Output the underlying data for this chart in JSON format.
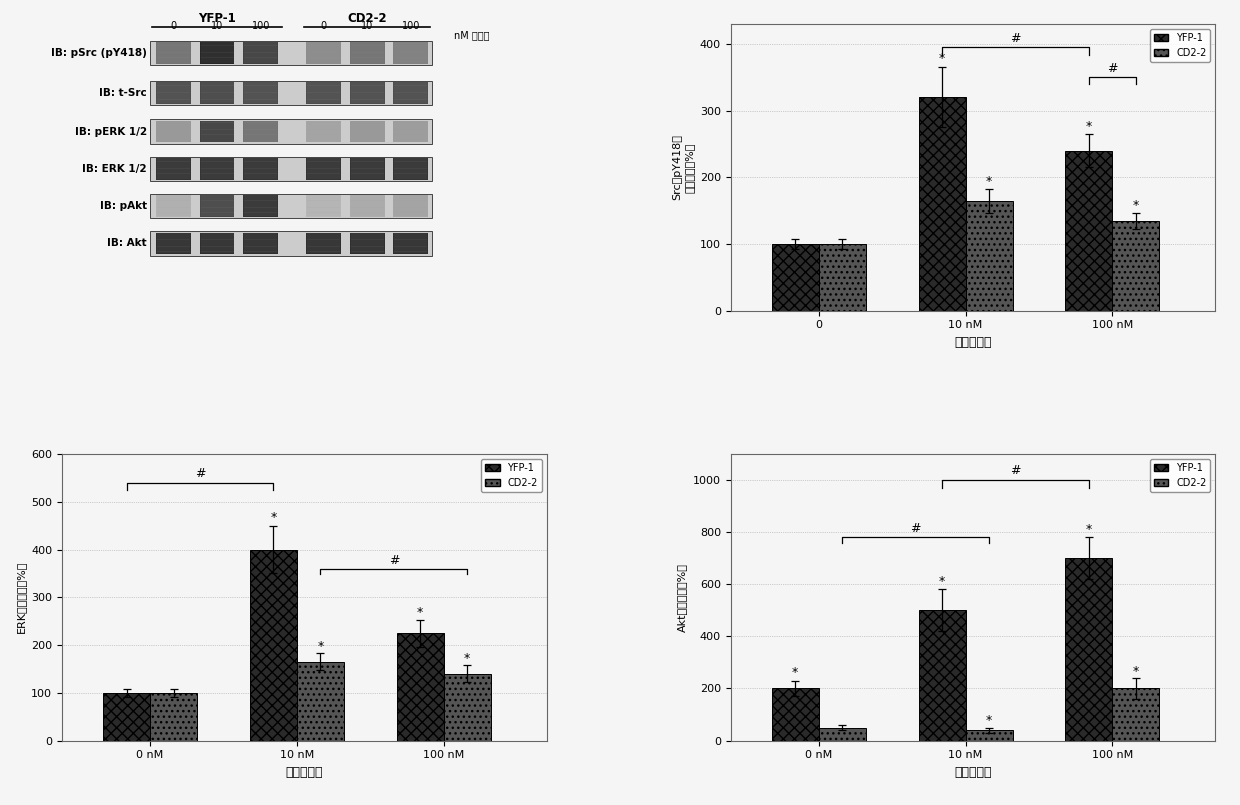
{
  "western_blot": {
    "labels": [
      "IB: pSrc (pY418)",
      "IB: t-Src",
      "IB: pERK 1/2",
      "IB: ERK 1/2",
      "IB: pAkt",
      "IB: Akt"
    ],
    "col_groups": [
      "YFP-1",
      "CD2-2"
    ],
    "col_doses": [
      "0",
      "10",
      "100",
      "0",
      "10",
      "100"
    ],
    "dose_label": "nM 乌本苷"
  },
  "src_chart": {
    "ylabel": "Src（pY418）\n活化（对照%）",
    "xlabel": "乌本苷浓度",
    "xtick_labels": [
      "0",
      "10 nM",
      "100 nM"
    ],
    "yfp_values": [
      100,
      320,
      240
    ],
    "cd2_values": [
      100,
      165,
      135
    ],
    "yfp_errors": [
      8,
      45,
      25
    ],
    "cd2_errors": [
      8,
      18,
      12
    ],
    "ylim": [
      0,
      430
    ],
    "yticks": [
      0,
      100,
      200,
      300,
      400
    ],
    "yfp_color": "#2a2a2a",
    "cd2_color": "#555555"
  },
  "erk_chart": {
    "ylabel": "ERK活化（对照%）",
    "xlabel": "乌本苷浓度",
    "xtick_labels": [
      "0 nM",
      "10 nM",
      "100 nM"
    ],
    "yfp_values": [
      100,
      400,
      225
    ],
    "cd2_values": [
      100,
      165,
      140
    ],
    "yfp_errors": [
      8,
      50,
      28
    ],
    "cd2_errors": [
      8,
      18,
      18
    ],
    "ylim": [
      0,
      600
    ],
    "yticks": [
      0,
      100,
      200,
      300,
      400,
      500,
      600
    ],
    "yfp_color": "#2a2a2a",
    "cd2_color": "#555555"
  },
  "akt_chart": {
    "ylabel": "Akt活化（对照%）",
    "xlabel": "乌本苷浓度",
    "xtick_labels": [
      "0 nM",
      "10 nM",
      "100 nM"
    ],
    "yfp_values": [
      200,
      500,
      700
    ],
    "cd2_values": [
      50,
      40,
      200
    ],
    "yfp_errors": [
      30,
      80,
      80
    ],
    "cd2_errors": [
      10,
      10,
      40
    ],
    "ylim": [
      0,
      1100
    ],
    "yticks": [
      0,
      200,
      400,
      600,
      800,
      1000
    ],
    "yfp_color": "#2a2a2a",
    "cd2_color": "#555555"
  },
  "bar_width": 0.32,
  "bg_color": "#f5f5f5"
}
